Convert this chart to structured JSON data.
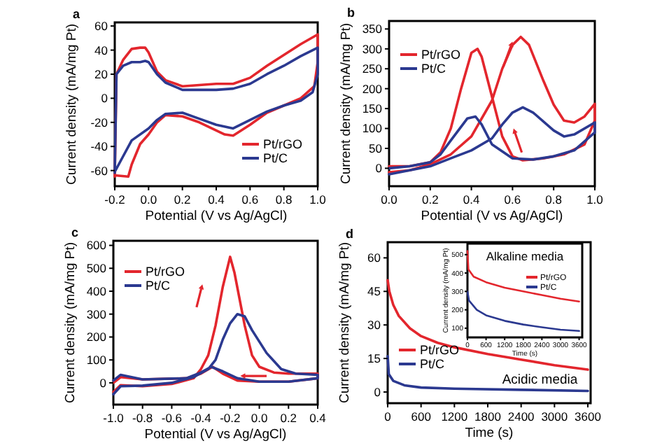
{
  "chart_data": [
    {
      "type": "line",
      "title": "a",
      "xlabel": "Potential (V vs Ag/AgCl)",
      "ylabel": "Current density (mA/mg Pt)",
      "xlim": [
        -0.2,
        1.0
      ],
      "xticks": [
        {
          "value": -0.2,
          "label": "-0.2"
        },
        {
          "value": 0,
          "label": "0.0"
        },
        {
          "value": 0.2,
          "label": "0.2"
        },
        {
          "value": 0.4,
          "label": "0.4"
        },
        {
          "value": 0.6,
          "label": "0.6"
        },
        {
          "value": 0.8,
          "label": "0.8"
        },
        {
          "value": 1.0,
          "label": "1.0"
        }
      ],
      "ylim": [
        -73,
        63
      ],
      "yticks": [
        -60,
        -40,
        -20,
        0,
        20,
        40,
        60
      ],
      "legend": "bottom right",
      "series": [
        {
          "name": "Pt/rGO",
          "color": "#e3262d",
          "x": [
            -0.2,
            -0.19,
            -0.15,
            -0.1,
            -0.05,
            -0.02,
            0.0,
            0.05,
            0.1,
            0.2,
            0.3,
            0.4,
            0.5,
            0.6,
            0.7,
            0.8,
            0.9,
            1.0,
            1.0,
            0.98,
            0.9,
            0.8,
            0.7,
            0.6,
            0.5,
            0.45,
            0.3,
            0.2,
            0.1,
            0.05,
            0.0,
            -0.05,
            -0.1,
            -0.12,
            -0.2
          ],
          "values": [
            -65,
            20,
            32,
            41,
            42,
            42,
            38,
            22,
            15,
            10,
            11,
            12,
            12,
            17,
            27,
            36,
            45,
            53,
            30,
            10,
            0,
            -6,
            -12,
            -22,
            -31,
            -30,
            -20,
            -15,
            -14,
            -20,
            -30,
            -38,
            -55,
            -65,
            -64
          ]
        },
        {
          "name": "Pt/C",
          "color": "#2b3990",
          "x": [
            -0.2,
            -0.19,
            -0.15,
            -0.1,
            -0.05,
            -0.02,
            0.0,
            0.05,
            0.1,
            0.2,
            0.3,
            0.4,
            0.5,
            0.6,
            0.7,
            0.8,
            0.9,
            1.0,
            1.0,
            0.97,
            0.9,
            0.8,
            0.7,
            0.6,
            0.5,
            0.4,
            0.3,
            0.2,
            0.1,
            0.05,
            0.0,
            -0.1,
            -0.15,
            -0.2
          ],
          "values": [
            -62,
            20,
            27,
            30,
            30,
            31,
            30,
            20,
            13,
            7,
            7,
            7,
            8,
            12,
            20,
            27,
            35,
            42,
            20,
            5,
            -2,
            -6,
            -11,
            -18,
            -25,
            -22,
            -17,
            -12,
            -13,
            -18,
            -25,
            -35,
            -48,
            -61
          ]
        }
      ]
    },
    {
      "type": "line",
      "title": "b",
      "xlabel": "Potential (V vs Ag/AgCl)",
      "ylabel": "Current density (mA/mg Pt)",
      "xlim": [
        0,
        1.0
      ],
      "xticks": [
        {
          "value": 0,
          "label": "0.0"
        },
        {
          "value": 0.2,
          "label": "0.2"
        },
        {
          "value": 0.4,
          "label": "0.4"
        },
        {
          "value": 0.6,
          "label": "0.6"
        },
        {
          "value": 0.8,
          "label": "0.8"
        },
        {
          "value": 1.0,
          "label": "1.0"
        }
      ],
      "ylim": [
        -45,
        370
      ],
      "yticks": [
        0,
        50,
        100,
        150,
        200,
        250,
        300,
        350
      ],
      "legend": "top left",
      "series": [
        {
          "name": "Pt/rGO",
          "color": "#e3262d",
          "x": [
            0,
            0.1,
            0.2,
            0.3,
            0.4,
            0.5,
            0.55,
            0.6,
            0.64,
            0.68,
            0.75,
            0.8,
            0.85,
            0.9,
            0.95,
            1.0,
            1.0,
            0.95,
            0.85,
            0.75,
            0.65,
            0.6,
            0.55,
            0.5,
            0.45,
            0.43,
            0.4,
            0.35,
            0.3,
            0.25,
            0.2,
            0.1,
            0
          ],
          "values": [
            -10,
            -5,
            10,
            35,
            80,
            170,
            250,
            310,
            330,
            310,
            220,
            160,
            120,
            115,
            130,
            162,
            120,
            60,
            35,
            25,
            20,
            30,
            80,
            180,
            280,
            300,
            290,
            200,
            100,
            40,
            15,
            5,
            5
          ]
        },
        {
          "name": "Pt/C",
          "color": "#2b3990",
          "x": [
            0,
            0.2,
            0.3,
            0.4,
            0.5,
            0.55,
            0.6,
            0.65,
            0.7,
            0.8,
            0.85,
            0.9,
            1.0,
            1.0,
            0.9,
            0.8,
            0.7,
            0.6,
            0.5,
            0.45,
            0.42,
            0.38,
            0.3,
            0.25,
            0.2,
            0.1,
            0
          ],
          "values": [
            -15,
            5,
            25,
            45,
            75,
            110,
            140,
            153,
            140,
            95,
            80,
            85,
            115,
            90,
            45,
            30,
            22,
            25,
            60,
            110,
            130,
            125,
            70,
            35,
            15,
            5,
            0
          ]
        }
      ]
    },
    {
      "type": "line",
      "title": "c",
      "xlabel": "Potential (V vs Ag/AgCl)",
      "ylabel": "Current density (mA/mg Pt)",
      "xlim": [
        -1.0,
        0.4
      ],
      "xticks": [
        {
          "value": -1.0,
          "label": "-1.0"
        },
        {
          "value": -0.8,
          "label": "-0.8"
        },
        {
          "value": -0.6,
          "label": "-0.6"
        },
        {
          "value": -0.4,
          "label": "-0.4"
        },
        {
          "value": -0.2,
          "label": "-0.2"
        },
        {
          "value": 0,
          "label": "0.0"
        },
        {
          "value": 0.2,
          "label": "0.2"
        },
        {
          "value": 0.4,
          "label": "0.4"
        }
      ],
      "ylim": [
        -95,
        620
      ],
      "yticks": [
        0,
        100,
        200,
        300,
        400,
        500,
        600
      ],
      "legend": "top left",
      "series": [
        {
          "name": "Pt/rGO",
          "color": "#e3262d",
          "x": [
            -1.0,
            -0.95,
            -0.8,
            -0.6,
            -0.45,
            -0.4,
            -0.35,
            -0.3,
            -0.25,
            -0.2,
            -0.17,
            -0.1,
            -0.05,
            0.0,
            0.1,
            0.2,
            0.4,
            0.4,
            0.2,
            0.0,
            -0.15,
            -0.25,
            -0.32,
            -0.4,
            -0.5,
            -0.8,
            -0.95,
            -1.0
          ],
          "values": [
            -40,
            -10,
            -15,
            -5,
            20,
            60,
            120,
            250,
            420,
            550,
            480,
            250,
            120,
            70,
            45,
            40,
            40,
            20,
            5,
            5,
            10,
            40,
            70,
            40,
            20,
            15,
            25,
            0
          ]
        },
        {
          "name": "Pt/C",
          "color": "#2b3990",
          "x": [
            -1.0,
            -0.95,
            -0.8,
            -0.6,
            -0.45,
            -0.35,
            -0.3,
            -0.25,
            -0.2,
            -0.15,
            -0.1,
            -0.05,
            0.05,
            0.15,
            0.25,
            0.4,
            0.4,
            0.2,
            0.0,
            -0.15,
            -0.25,
            -0.33,
            -0.4,
            -0.5,
            -0.8,
            -0.95,
            -1.0
          ],
          "values": [
            -50,
            -15,
            -12,
            0,
            25,
            60,
            100,
            190,
            260,
            300,
            290,
            230,
            130,
            60,
            40,
            35,
            20,
            5,
            5,
            20,
            50,
            70,
            45,
            20,
            15,
            35,
            10
          ]
        }
      ]
    },
    {
      "type": "line",
      "title": "d",
      "xlabel": "Time (s)",
      "ylabel": "Current density (mA/mg Pt)",
      "xlim": [
        0,
        3650
      ],
      "xticks": [
        0,
        600,
        1200,
        1800,
        2400,
        3000,
        3600
      ],
      "ylim": [
        -5,
        67
      ],
      "yticks": [
        0,
        15,
        30,
        45,
        60
      ],
      "legend": "bottom left",
      "annotations": [
        "Acidic media"
      ],
      "series": [
        {
          "name": "Pt/rGO",
          "color": "#e3262d",
          "x": [
            0,
            30,
            100,
            200,
            400,
            600,
            900,
            1200,
            1800,
            2400,
            3000,
            3600
          ],
          "values": [
            50,
            45,
            39,
            34,
            28.5,
            25,
            22,
            20,
            17,
            14.5,
            12,
            10
          ]
        },
        {
          "name": "Pt/C",
          "color": "#2b3990",
          "x": [
            0,
            20,
            100,
            300,
            600,
            1200,
            2400,
            3600
          ],
          "values": [
            16,
            8,
            5,
            3,
            2,
            1.5,
            1,
            0.5
          ]
        }
      ]
    },
    {
      "type": "line",
      "title": "Alkaline media",
      "xlabel": "Time (s)",
      "ylabel": "Current density (mA/mg Pt)",
      "xlim": [
        0,
        3700
      ],
      "xticks": [
        0,
        600,
        1200,
        1800,
        2400,
        3000,
        3600
      ],
      "ylim": [
        50,
        560
      ],
      "yticks": [
        100,
        200,
        300,
        400,
        500
      ],
      "legend": "top right",
      "series": [
        {
          "name": "Pt/rGO",
          "color": "#e3262d",
          "x": [
            0,
            30,
            200,
            600,
            1200,
            1800,
            2400,
            3000,
            3600
          ],
          "values": [
            520,
            420,
            380,
            350,
            320,
            300,
            280,
            260,
            245
          ]
        },
        {
          "name": "Pt/C",
          "color": "#2b3990",
          "x": [
            0,
            50,
            300,
            600,
            1200,
            1800,
            2400,
            3000,
            3600
          ],
          "values": [
            300,
            250,
            200,
            170,
            140,
            120,
            105,
            92,
            85
          ]
        }
      ]
    }
  ]
}
